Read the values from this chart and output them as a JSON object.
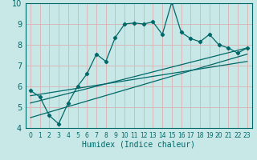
{
  "xlabel": "Humidex (Indice chaleur)",
  "bg_color": "#c8e8e8",
  "line_color": "#006868",
  "grid_color": "#d8b8b8",
  "xlim": [
    -0.5,
    23.5
  ],
  "ylim": [
    4,
    10
  ],
  "xticks": [
    0,
    1,
    2,
    3,
    4,
    5,
    6,
    7,
    8,
    9,
    10,
    11,
    12,
    13,
    14,
    15,
    16,
    17,
    18,
    19,
    20,
    21,
    22,
    23
  ],
  "yticks": [
    4,
    5,
    6,
    7,
    8,
    9,
    10
  ],
  "main_x": [
    0,
    1,
    2,
    3,
    4,
    5,
    6,
    7,
    8,
    9,
    10,
    11,
    12,
    13,
    14,
    15,
    16,
    17,
    18,
    19,
    20,
    21,
    22,
    23
  ],
  "main_y": [
    5.8,
    5.5,
    4.6,
    4.2,
    5.2,
    6.0,
    6.6,
    7.55,
    7.2,
    8.35,
    9.0,
    9.05,
    9.0,
    9.1,
    8.5,
    10.05,
    8.6,
    8.3,
    8.15,
    8.5,
    8.0,
    7.85,
    7.6,
    7.85
  ],
  "line1_x": [
    0,
    23
  ],
  "line1_y": [
    5.2,
    7.85
  ],
  "line2_x": [
    0,
    23
  ],
  "line2_y": [
    4.5,
    7.55
  ],
  "line3_x": [
    0,
    23
  ],
  "line3_y": [
    5.55,
    7.2
  ]
}
